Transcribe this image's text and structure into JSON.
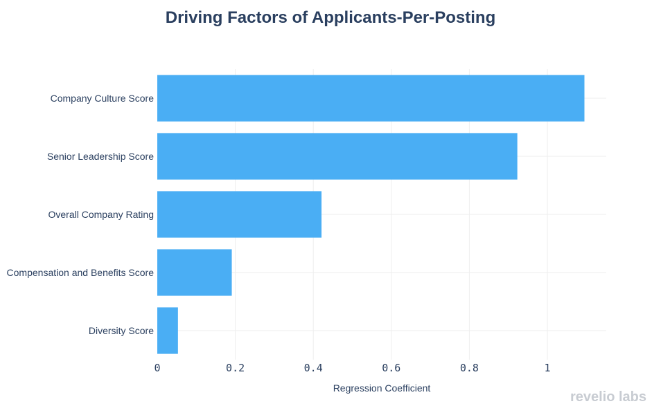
{
  "chart_data": {
    "type": "bar",
    "orientation": "horizontal",
    "title": "Driving Factors of Applicants-Per-Posting",
    "xlabel": "Regression Coefficient",
    "ylabel": "",
    "categories": [
      "Company Culture Score",
      "Senior Leadership Score",
      "Overall Company Rating",
      "Compensation and Benefits Score",
      "Diversity Score"
    ],
    "values": [
      1.095,
      0.923,
      0.421,
      0.191,
      0.053
    ],
    "xlim": [
      0,
      1.15
    ],
    "x_ticks": [
      0,
      0.2,
      0.4,
      0.6,
      0.8,
      1
    ],
    "x_tick_labels": [
      "0",
      "0.2",
      "0.4",
      "0.6",
      "0.8",
      "1"
    ],
    "grid": true,
    "legend": "none",
    "bar_color": "#4aaef4"
  },
  "branding": {
    "logo_text": "revelio labs"
  },
  "colors": {
    "title": "#2a3f5f",
    "text": "#2a3f5f",
    "grid": "#eeeeee",
    "brand": "#c8ccd2"
  }
}
